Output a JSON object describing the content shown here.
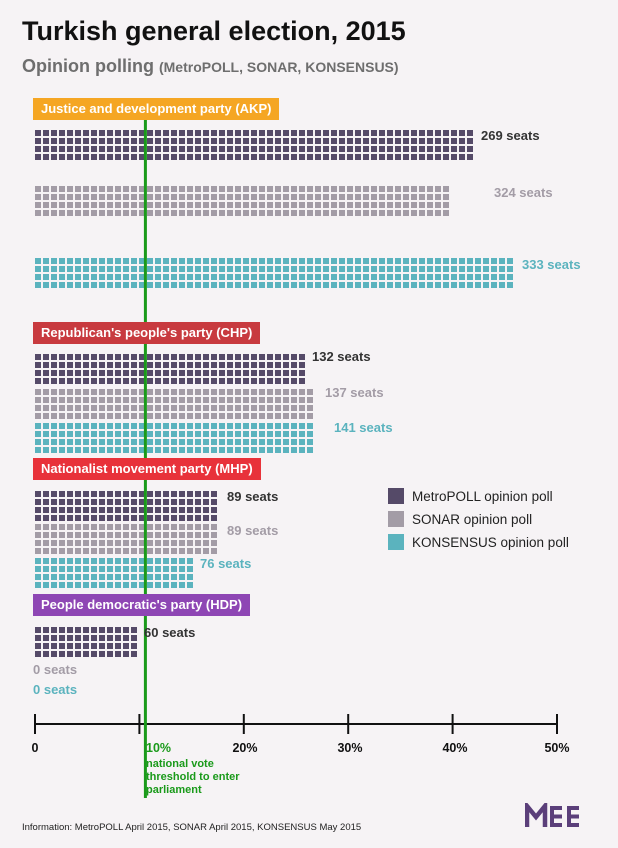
{
  "title": "Turkish general election, 2015",
  "subtitle": "Opinion polling",
  "sources_note": "(MetroPOLL, SONAR, KONSENSUS)",
  "footer": "Information: MetroPOLL April 2015, SONAR April 2015, KONSENSUS May 2015",
  "logo_text": "MEE",
  "threshold": {
    "value_label": "10%",
    "note": "national vote threshold to enter parliament",
    "value": 10,
    "color": "#1a9a1a"
  },
  "chart_data": {
    "type": "bar",
    "title": "Turkish general election, 2015",
    "xlabel": "",
    "ylabel": "",
    "xlim": [
      0,
      50
    ],
    "x_ticks": [
      "0",
      "10%",
      "20%",
      "30%",
      "40%",
      "50%"
    ],
    "series_names": [
      "MetroPOLL opinion poll",
      "SONAR opinion poll",
      "KONSENSUS opinion poll"
    ],
    "series_colors": [
      "#554a68",
      "#a39ca6",
      "#5bb3be"
    ],
    "parties": [
      {
        "name": "Justice and development party (AKP)",
        "color": "#f5a623",
        "vote_percent": [
          42.5,
          40.0,
          46.0
        ],
        "seats": [
          269,
          324,
          333
        ],
        "seat_labels": [
          "269 seats",
          "324 seats",
          "333 seats"
        ]
      },
      {
        "name": "Republican's people's party (CHP)",
        "color": "#c83a3f",
        "vote_percent": [
          26.0,
          26.5,
          27.0
        ],
        "seats": [
          132,
          137,
          141
        ],
        "seat_labels": [
          "132 seats",
          "137 seats",
          "141 seats"
        ]
      },
      {
        "name": "Nationalist movement party (MHP)",
        "color": "#e8323a",
        "vote_percent": [
          17.5,
          17.5,
          15.5
        ],
        "seats": [
          89,
          89,
          76
        ],
        "seat_labels": [
          "89 seats",
          "89 seats",
          "76 seats"
        ]
      },
      {
        "name": "People democratic's party (HDP)",
        "color": "#8e46b4",
        "vote_percent": [
          10.0,
          0,
          0
        ],
        "seats": [
          60,
          0,
          0
        ],
        "seat_labels": [
          "60 seats",
          "0 seats",
          "0 seats"
        ]
      }
    ]
  }
}
